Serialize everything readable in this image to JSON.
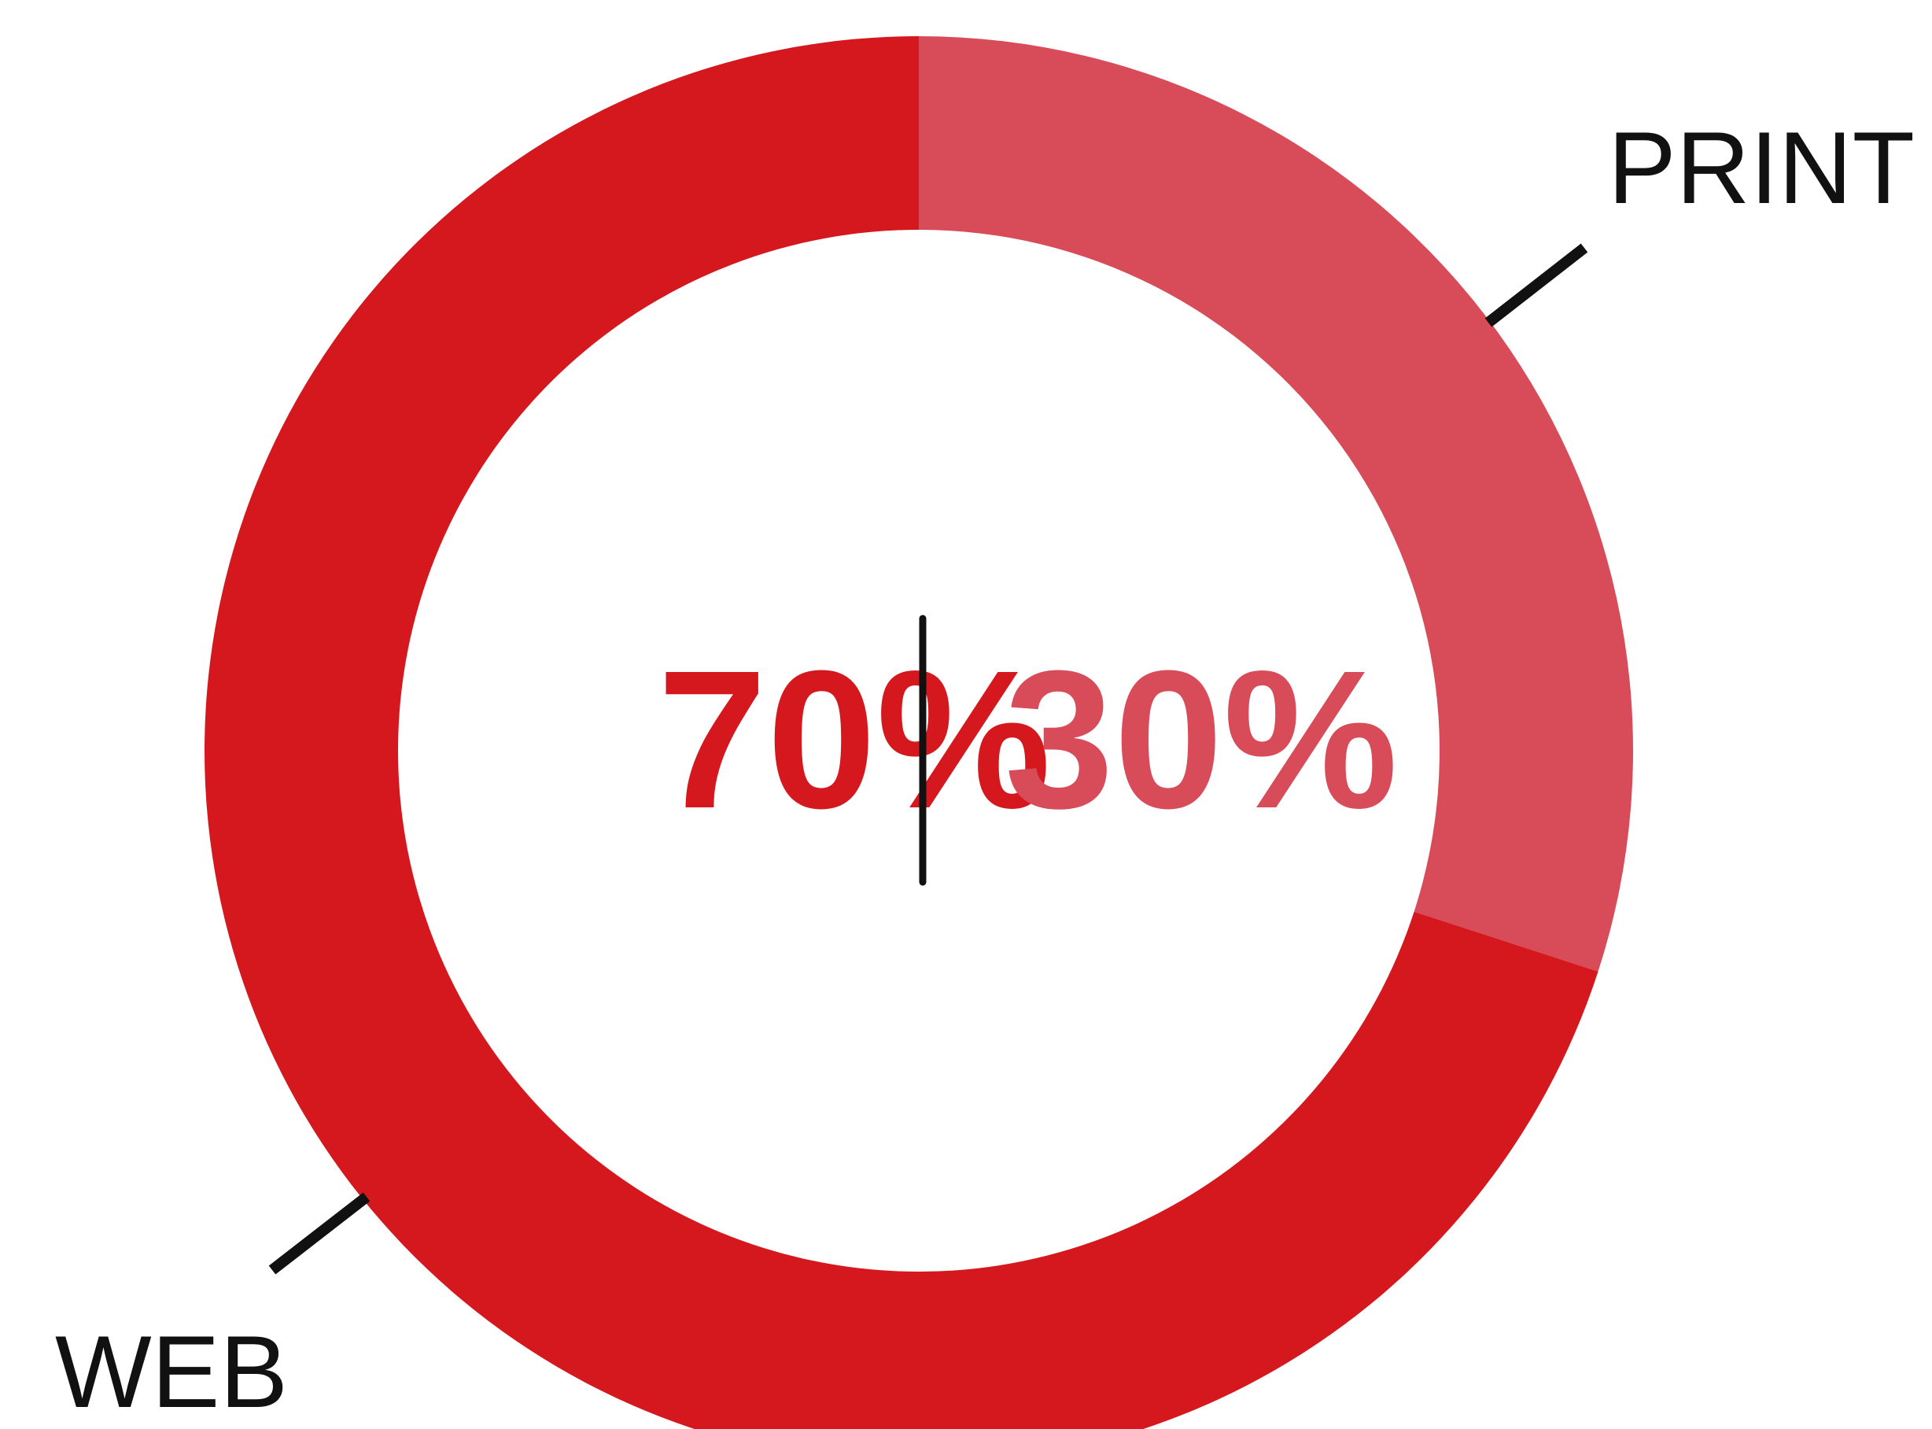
{
  "chart_data": {
    "type": "pie",
    "variant": "donut",
    "categories": [
      "WEB",
      "PRINT"
    ],
    "values": [
      70,
      30
    ],
    "value_labels": [
      "70%",
      "30%"
    ],
    "colors": [
      "#d4181e",
      "#d84b58"
    ],
    "title": "",
    "legend": "none"
  }
}
